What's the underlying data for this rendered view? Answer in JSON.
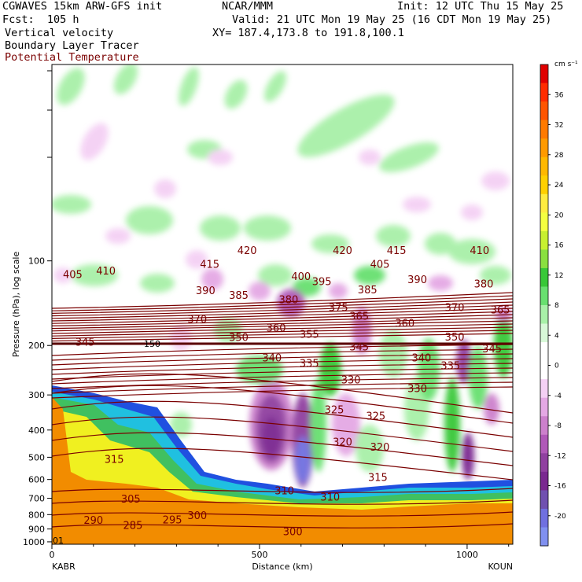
{
  "header": {
    "model": "CGWAVES 15km ARW-GFS init",
    "center": "NCAR/MMM",
    "init": "Init: 12 UTC Thu 15 May 25",
    "fcst": "Fcst:  105 h",
    "valid": "Valid: 21 UTC Mon 19 May 25 (16 CDT Mon 19 May 25)",
    "field1": "Vertical velocity",
    "field2": "Boundary Layer Tracer",
    "field3": "Potential Temperature",
    "xy": "XY= 187.4,173.8 to 191.8,100.1"
  },
  "colors": {
    "theta": "#7a0000",
    "terrain": "#f28c00",
    "tracer_yellow": "#f0f020",
    "tracer_green": "#40c060",
    "tracer_cyan": "#20c0e0",
    "tracer_blue": "#2050e0"
  },
  "chart_data": {
    "type": "cross-section",
    "xlabel": "Distance (km)",
    "ylabel": "Pressure (hPa), log scale",
    "x_ticks": [
      0,
      500,
      1000
    ],
    "y_ticks": [
      100,
      200,
      300,
      400,
      500,
      600,
      700,
      800,
      900,
      1000
    ],
    "y_scale": "log",
    "xlim": [
      0,
      1110
    ],
    "ylim": [
      1020,
      20
    ],
    "endpoint_left": "KABR",
    "endpoint_right": "KOUN",
    "corner_label": "01",
    "tropopause_label": "150",
    "theta_labels": [
      {
        "text": "420",
        "x": 470,
        "p": 92
      },
      {
        "text": "420",
        "x": 700,
        "p": 92
      },
      {
        "text": "415",
        "x": 830,
        "p": 92
      },
      {
        "text": "410",
        "x": 1030,
        "p": 92
      },
      {
        "text": "415",
        "x": 380,
        "p": 103
      },
      {
        "text": "405",
        "x": 790,
        "p": 103
      },
      {
        "text": "405",
        "x": 50,
        "p": 112
      },
      {
        "text": "410",
        "x": 130,
        "p": 109
      },
      {
        "text": "400",
        "x": 600,
        "p": 114
      },
      {
        "text": "395",
        "x": 650,
        "p": 119
      },
      {
        "text": "390",
        "x": 880,
        "p": 117
      },
      {
        "text": "380",
        "x": 1040,
        "p": 121
      },
      {
        "text": "390",
        "x": 370,
        "p": 128
      },
      {
        "text": "385",
        "x": 450,
        "p": 133
      },
      {
        "text": "385",
        "x": 760,
        "p": 127
      },
      {
        "text": "380",
        "x": 570,
        "p": 138
      },
      {
        "text": "375",
        "x": 690,
        "p": 147
      },
      {
        "text": "370",
        "x": 970,
        "p": 147
      },
      {
        "text": "365",
        "x": 1080,
        "p": 150
      },
      {
        "text": "370",
        "x": 350,
        "p": 162
      },
      {
        "text": "365",
        "x": 740,
        "p": 158
      },
      {
        "text": "360",
        "x": 540,
        "p": 174
      },
      {
        "text": "360",
        "x": 850,
        "p": 167
      },
      {
        "text": "355",
        "x": 620,
        "p": 183
      },
      {
        "text": "350",
        "x": 450,
        "p": 188
      },
      {
        "text": "350",
        "x": 970,
        "p": 187
      },
      {
        "text": "345",
        "x": 80,
        "p": 195
      },
      {
        "text": "345",
        "x": 740,
        "p": 203
      },
      {
        "text": "345",
        "x": 1060,
        "p": 206
      },
      {
        "text": "340",
        "x": 530,
        "p": 222
      },
      {
        "text": "340",
        "x": 890,
        "p": 222
      },
      {
        "text": "335",
        "x": 620,
        "p": 232
      },
      {
        "text": "335",
        "x": 960,
        "p": 237
      },
      {
        "text": "330",
        "x": 720,
        "p": 266
      },
      {
        "text": "330",
        "x": 880,
        "p": 286
      },
      {
        "text": "325",
        "x": 680,
        "p": 340
      },
      {
        "text": "325",
        "x": 780,
        "p": 358
      },
      {
        "text": "320",
        "x": 700,
        "p": 442
      },
      {
        "text": "320",
        "x": 790,
        "p": 462
      },
      {
        "text": "315",
        "x": 150,
        "p": 510
      },
      {
        "text": "315",
        "x": 785,
        "p": 592
      },
      {
        "text": "310",
        "x": 560,
        "p": 660
      },
      {
        "text": "310",
        "x": 670,
        "p": 695
      },
      {
        "text": "305",
        "x": 190,
        "p": 707
      },
      {
        "text": "300",
        "x": 350,
        "p": 810
      },
      {
        "text": "295",
        "x": 290,
        "p": 838
      },
      {
        "text": "290",
        "x": 100,
        "p": 840
      },
      {
        "text": "285",
        "x": 195,
        "p": 878
      },
      {
        "text": "300",
        "x": 580,
        "p": 922
      }
    ],
    "colorbar": {
      "unit": "cm s⁻¹",
      "labels": [
        36,
        32,
        28,
        24,
        20,
        16,
        12,
        8,
        4,
        0,
        -4,
        -8,
        -12,
        -16,
        -20
      ],
      "colors": [
        "#e00000",
        "#ff2c00",
        "#ff5500",
        "#ff7a00",
        "#ff9a00",
        "#ffb800",
        "#ffd000",
        "#ffec40",
        "#f4ff40",
        "#c8f030",
        "#8ae040",
        "#38c838",
        "#68e070",
        "#a8f0a8",
        "#d8f8d8",
        "#ffffff",
        "#ffffff",
        "#f4d0f4",
        "#e4a8e4",
        "#cc80cc",
        "#b058b8",
        "#9040a0",
        "#7a2890",
        "#7050b0",
        "#7070e0",
        "#8090f0"
      ]
    }
  }
}
